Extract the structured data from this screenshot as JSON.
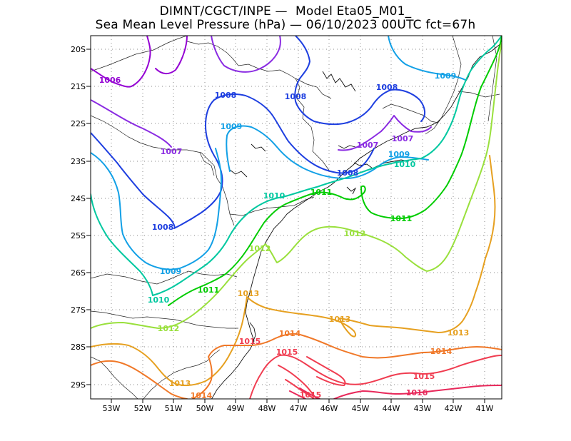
{
  "title_line1": "DIMNT/CGCT/INPE —  Model Eta05_M01_",
  "title_line2": "Sea Mean Level Pressure (hPa) — 06/10/2023 00UTC fct=67h",
  "y_ticks": [
    "20S",
    "21S",
    "22S",
    "23S",
    "24S",
    "25S",
    "26S",
    "27S",
    "28S",
    "29S"
  ],
  "x_ticks": [
    "53W",
    "52W",
    "51W",
    "50W",
    "49W",
    "48W",
    "47W",
    "46W",
    "45W",
    "44W",
    "43W",
    "42W",
    "41W"
  ],
  "colors": {
    "c1006": "#9400d3",
    "c1007": "#8a2be2",
    "c1008": "#1e3fe0",
    "c1009": "#12a0e6",
    "c1010": "#00c8a0",
    "c1011": "#00cc00",
    "c1012": "#99e03c",
    "c1013": "#e6a020",
    "c1014": "#f07828",
    "c1015": "#f03c50",
    "c1016": "#e8285a"
  },
  "contour_labels": [
    {
      "text": "1006",
      "level": "c1006"
    },
    {
      "text": "1007",
      "level": "c1007"
    },
    {
      "text": "1007",
      "level": "c1007"
    },
    {
      "text": "1007",
      "level": "c1007"
    },
    {
      "text": "1008",
      "level": "c1008"
    },
    {
      "text": "1008",
      "level": "c1008"
    },
    {
      "text": "1008",
      "level": "c1008"
    },
    {
      "text": "1008",
      "level": "c1008"
    },
    {
      "text": "1008",
      "level": "c1008"
    },
    {
      "text": "1009",
      "level": "c1009"
    },
    {
      "text": "1009",
      "level": "c1009"
    },
    {
      "text": "1009",
      "level": "c1009"
    },
    {
      "text": "1009",
      "level": "c1009"
    },
    {
      "text": "1010",
      "level": "c1010"
    },
    {
      "text": "1010",
      "level": "c1010"
    },
    {
      "text": "1010",
      "level": "c1010"
    },
    {
      "text": "1011",
      "level": "c1011"
    },
    {
      "text": "1011",
      "level": "c1011"
    },
    {
      "text": "1011",
      "level": "c1011"
    },
    {
      "text": "1012",
      "level": "c1012"
    },
    {
      "text": "1012",
      "level": "c1012"
    },
    {
      "text": "1012",
      "level": "c1012"
    },
    {
      "text": "1013",
      "level": "c1013"
    },
    {
      "text": "1013",
      "level": "c1013"
    },
    {
      "text": "1013",
      "level": "c1013"
    },
    {
      "text": "1013",
      "level": "c1013"
    },
    {
      "text": "1014",
      "level": "c1014"
    },
    {
      "text": "1014",
      "level": "c1014"
    },
    {
      "text": "1014",
      "level": "c1014"
    },
    {
      "text": "1015",
      "level": "c1015"
    },
    {
      "text": "1015",
      "level": "c1015"
    },
    {
      "text": "1015",
      "level": "c1015"
    },
    {
      "text": "1015",
      "level": "c1015"
    },
    {
      "text": "1016",
      "level": "c1016"
    }
  ]
}
